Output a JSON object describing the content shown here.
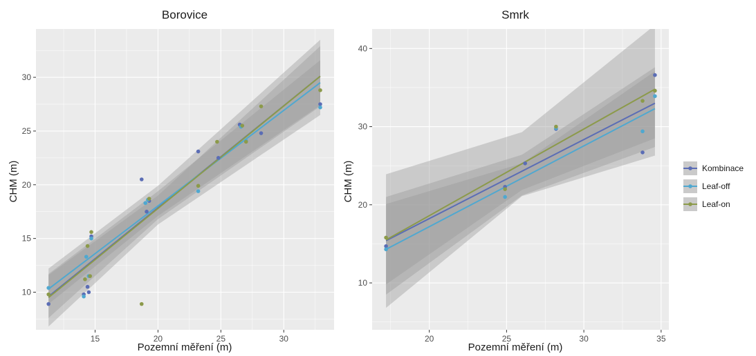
{
  "chart_data": [
    {
      "type": "scatter",
      "title": "Borovice",
      "xlabel": "Pozemní měření (m)",
      "ylabel": "CHM (m)",
      "xlim": [
        10.3,
        34.0
      ],
      "ylim": [
        6.5,
        34.5
      ],
      "xticks": [
        "15",
        "20",
        "25",
        "30"
      ],
      "yticks": [
        "10",
        "15",
        "20",
        "25",
        "30"
      ],
      "grid": true,
      "series": [
        {
          "name": "Kombinace",
          "points": [
            [
              11.3,
              8.9
            ],
            [
              14.1,
              9.8
            ],
            [
              14.4,
              10.5
            ],
            [
              14.5,
              10.0
            ],
            [
              14.7,
              15.2
            ],
            [
              18.7,
              20.5
            ],
            [
              19.1,
              17.5
            ],
            [
              19.3,
              18.5
            ],
            [
              23.2,
              23.1
            ],
            [
              24.8,
              22.5
            ],
            [
              26.5,
              25.6
            ],
            [
              28.2,
              24.8
            ],
            [
              32.9,
              27.5
            ]
          ],
          "fit": [
            [
              11.3,
              9.6
            ],
            [
              32.9,
              30.1
            ]
          ],
          "band": [
            [
              11.3,
              7.6,
              11.6
            ],
            [
              20.0,
              16.8,
              19.0
            ],
            [
              32.9,
              27.3,
              32.9
            ]
          ]
        },
        {
          "name": "Leaf-off",
          "points": [
            [
              11.3,
              10.4
            ],
            [
              14.1,
              9.6
            ],
            [
              14.3,
              13.3
            ],
            [
              14.5,
              11.5
            ],
            [
              14.7,
              15.0
            ],
            [
              19.0,
              18.3
            ],
            [
              19.2,
              18.6
            ],
            [
              23.2,
              19.4
            ],
            [
              26.6,
              25.4
            ],
            [
              27.0,
              24.1
            ],
            [
              32.9,
              27.2
            ]
          ],
          "fit": [
            [
              11.3,
              10.3
            ],
            [
              32.9,
              29.5
            ]
          ],
          "band": [
            [
              11.3,
              8.9,
              11.7
            ],
            [
              20.0,
              17.1,
              19.4
            ],
            [
              32.9,
              27.4,
              31.6
            ]
          ]
        },
        {
          "name": "Leaf-on",
          "points": [
            [
              11.3,
              9.8
            ],
            [
              14.2,
              11.2
            ],
            [
              14.4,
              14.3
            ],
            [
              14.6,
              11.5
            ],
            [
              14.7,
              15.6
            ],
            [
              18.7,
              8.9
            ],
            [
              19.3,
              18.7
            ],
            [
              23.2,
              19.9
            ],
            [
              24.7,
              24.0
            ],
            [
              26.7,
              25.5
            ],
            [
              27.0,
              24.0
            ],
            [
              28.2,
              27.3
            ],
            [
              32.9,
              28.8
            ]
          ],
          "fit": [
            [
              11.3,
              9.5
            ],
            [
              32.9,
              30.1
            ]
          ],
          "band": [
            [
              11.3,
              6.8,
              12.2
            ],
            [
              20.0,
              16.3,
              19.9
            ],
            [
              32.9,
              26.5,
              33.5
            ]
          ]
        }
      ]
    },
    {
      "type": "scatter",
      "title": "Smrk",
      "xlabel": "Pozemní měření (m)",
      "ylabel": "CHM (m)",
      "xlim": [
        16.3,
        35.5
      ],
      "ylim": [
        4.0,
        42.5
      ],
      "xticks": [
        "20",
        "25",
        "30",
        "35"
      ],
      "yticks": [
        "10",
        "20",
        "30",
        "40"
      ],
      "grid": true,
      "series": [
        {
          "name": "Kombinace",
          "points": [
            [
              17.2,
              14.7
            ],
            [
              24.9,
              22.3
            ],
            [
              26.2,
              25.3
            ],
            [
              28.2,
              29.7
            ],
            [
              33.8,
              26.7
            ],
            [
              34.6,
              36.6
            ]
          ],
          "fit": [
            [
              17.2,
              15.4
            ],
            [
              34.6,
              33.0
            ]
          ],
          "band": [
            [
              17.2,
              9.8,
              21.0
            ],
            [
              26.0,
              21.9,
              26.4
            ],
            [
              34.6,
              28.5,
              37.6
            ]
          ]
        },
        {
          "name": "Leaf-off",
          "points": [
            [
              17.2,
              14.3
            ],
            [
              24.9,
              21.0
            ],
            [
              28.2,
              29.8
            ],
            [
              33.8,
              29.4
            ],
            [
              34.6,
              33.9
            ]
          ],
          "fit": [
            [
              17.2,
              14.3
            ],
            [
              34.6,
              32.3
            ]
          ],
          "band": [
            [
              17.2,
              8.5,
              20.1
            ],
            [
              26.0,
              21.2,
              25.3
            ],
            [
              34.6,
              27.4,
              37.1
            ]
          ]
        },
        {
          "name": "Leaf-on",
          "points": [
            [
              17.2,
              15.8
            ],
            [
              24.9,
              22.0
            ],
            [
              28.2,
              30.0
            ],
            [
              33.8,
              33.3
            ],
            [
              34.6,
              34.6
            ]
          ],
          "fit": [
            [
              17.2,
              15.5
            ],
            [
              34.6,
              34.8
            ]
          ],
          "band": [
            [
              17.2,
              6.8,
              23.9
            ],
            [
              26.0,
              21.1,
              29.3
            ],
            [
              34.6,
              26.3,
              43.0
            ]
          ]
        }
      ]
    }
  ],
  "legend": {
    "placement": "right",
    "items": [
      {
        "label": "Kombinace",
        "color": "#5B6DB5"
      },
      {
        "label": "Leaf-off",
        "color": "#4FA8D0"
      },
      {
        "label": "Leaf-on",
        "color": "#8C9A4A"
      }
    ]
  }
}
